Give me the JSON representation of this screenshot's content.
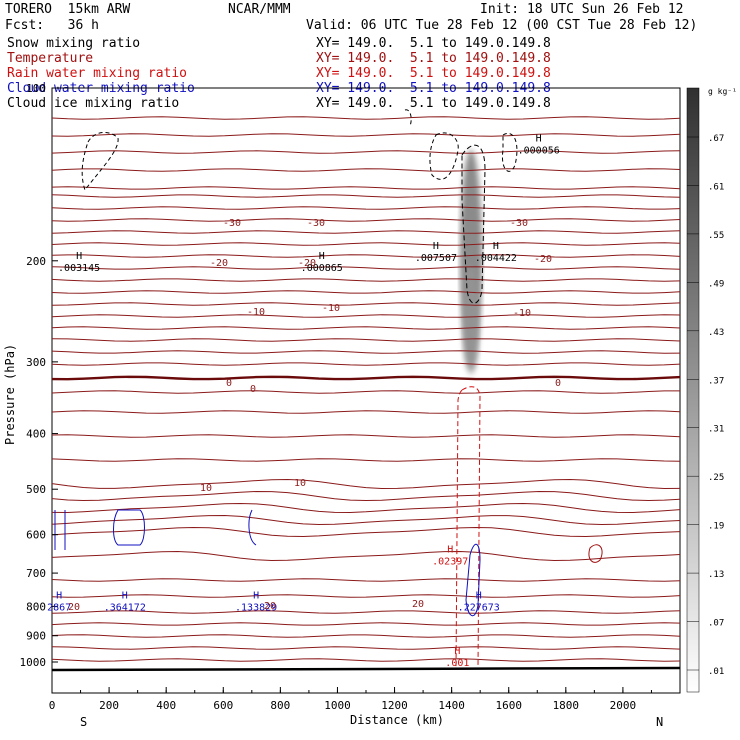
{
  "header": {
    "model": "TORERO  15km ARW",
    "org": "NCAR/MMM",
    "init": "Init: 18 UTC Sun 26 Feb 12",
    "fcst": "Fcst:   36 h",
    "valid": "Valid: 06 UTC Tue 28 Feb 12 (00 CST Tue 28 Feb 12)"
  },
  "fields": [
    {
      "name": "Snow mixing ratio",
      "color": "#000000",
      "xy": "XY= 149.0.  5.1 to 149.0.149.8"
    },
    {
      "name": "Temperature",
      "color": "#a01010",
      "xy": "XY= 149.0.  5.1 to 149.0.149.8"
    },
    {
      "name": "Rain water mixing ratio",
      "color": "#d01010",
      "xy": "XY= 149.0.  5.1 to 149.0.149.8"
    },
    {
      "name": "Cloud water mixing ratio",
      "color": "#1010c0",
      "xy": "XY= 149.0.  5.1 to 149.0.149.8"
    },
    {
      "name": "Cloud ice mixing ratio",
      "color": "#000000",
      "xy": "XY= 149.0.  5.1 to 149.0.149.8"
    }
  ],
  "chart_data": {
    "type": "line",
    "xlabel": "Distance (km)",
    "ylabel": "Pressure (hPa)",
    "xlim": [
      0,
      2200
    ],
    "ylim": [
      1050,
      100
    ],
    "y_scale": "log",
    "x_ticks": [
      "0",
      "200",
      "400",
      "600",
      "800",
      "1000",
      "1200",
      "1400",
      "1600",
      "1800",
      "2000"
    ],
    "y_ticks": [
      "100",
      "200",
      "300",
      "400",
      "500",
      "600",
      "700",
      "800",
      "900",
      "1000"
    ],
    "x_end_labels": {
      "left": "S",
      "right": "N"
    },
    "colorbar": {
      "unit": "g kg⁻¹",
      "labels": [
        ".01",
        ".07",
        ".13",
        ".19",
        ".25",
        ".31",
        ".37",
        ".43",
        ".49",
        ".55",
        ".61",
        ".67"
      ]
    },
    "temperature_contour_labels": [
      "-30",
      "-30",
      "-30",
      "-20",
      "-20",
      "-20",
      "-10",
      "-10",
      "-10",
      "0",
      "0",
      "0",
      "10",
      "10",
      "20",
      "20",
      "20"
    ],
    "max_labels": [
      {
        "text": ".003145",
        "x": 95,
        "p": 205
      },
      {
        "text": ".000865",
        "x": 945,
        "p": 205
      },
      {
        "text": ".007507",
        "x": 1345,
        "p": 197
      },
      {
        "text": ".004422",
        "x": 1555,
        "p": 197
      },
      {
        "text": ".000056",
        "x": 1705,
        "p": 128
      },
      {
        "text": ".02397",
        "x": 1395,
        "p": 665
      },
      {
        "text": ".001",
        "x": 1420,
        "p": 1000
      },
      {
        "text": ".133829",
        "x": 715,
        "p": 800
      },
      {
        "text": ".227673",
        "x": 1495,
        "p": 800
      },
      {
        "text": ".364172",
        "x": 255,
        "p": 800
      },
      {
        "text": "2867",
        "x": 25,
        "p": 800
      }
    ]
  }
}
